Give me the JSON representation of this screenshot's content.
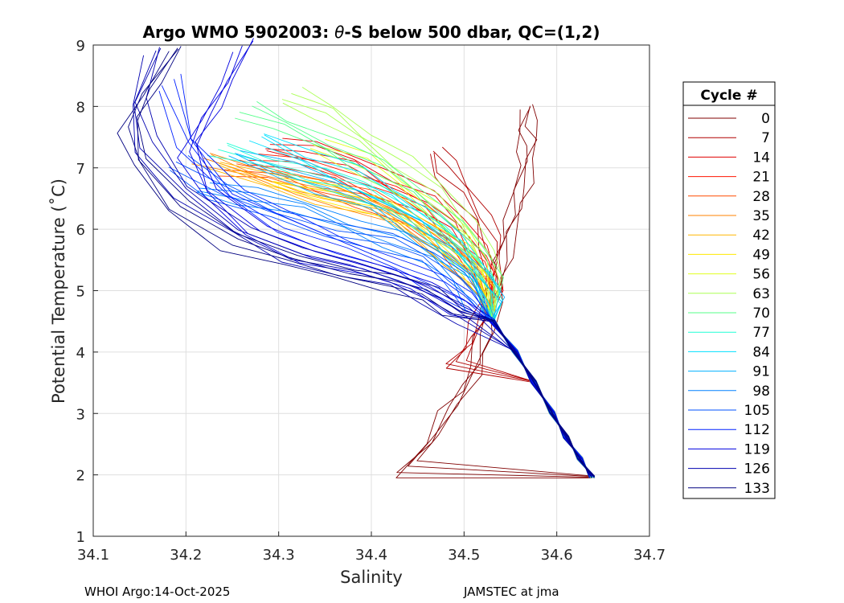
{
  "chart_data": {
    "type": "line",
    "title_prefix": "Argo WMO 5902003: ",
    "title_symbol": "θ",
    "title_suffix": "-S below 500 dbar,  QC=(1,2)",
    "xlabel": "Salinity",
    "ylabel": "Potential Temperature (˚C)",
    "xlim": [
      34.1,
      34.7
    ],
    "ylim": [
      1,
      9
    ],
    "xticks": [
      "34.1",
      "34.2",
      "34.3",
      "34.4",
      "34.5",
      "34.6",
      "34.7"
    ],
    "yticks": [
      "1",
      "2",
      "3",
      "4",
      "5",
      "6",
      "7",
      "8",
      "9"
    ],
    "grid": true,
    "legend": {
      "title": "Cycle #",
      "placement": "right-outside",
      "entries": [
        {
          "label": "0",
          "color": "#800000"
        },
        {
          "label": "7",
          "color": "#b00000"
        },
        {
          "label": "14",
          "color": "#e00000"
        },
        {
          "label": "21",
          "color": "#ff1500"
        },
        {
          "label": "28",
          "color": "#ff4a00"
        },
        {
          "label": "35",
          "color": "#ff8000"
        },
        {
          "label": "42",
          "color": "#ffb500"
        },
        {
          "label": "49",
          "color": "#ffea00"
        },
        {
          "label": "56",
          "color": "#e0ff20"
        },
        {
          "label": "63",
          "color": "#aaff55"
        },
        {
          "label": "70",
          "color": "#55ff8a"
        },
        {
          "label": "77",
          "color": "#20ffd5"
        },
        {
          "label": "84",
          "color": "#00e0ff"
        },
        {
          "label": "91",
          "color": "#00b0ff"
        },
        {
          "label": "98",
          "color": "#0080ff"
        },
        {
          "label": "105",
          "color": "#0050ff"
        },
        {
          "label": "112",
          "color": "#0020ff"
        },
        {
          "label": "119",
          "color": "#0000e0"
        },
        {
          "label": "126",
          "color": "#0000b0"
        },
        {
          "label": "133",
          "color": "#000080"
        }
      ]
    },
    "series": [
      {
        "name": "0",
        "color": "#800000",
        "x": [
          34.574,
          34.57,
          34.575,
          34.572,
          34.566,
          34.56,
          34.552,
          34.545,
          34.54,
          34.534,
          34.527,
          34.52,
          34.51,
          34.49,
          34.47,
          34.44
        ],
        "y": [
          7.9,
          7.6,
          7.3,
          7.0,
          6.6,
          6.2,
          5.8,
          5.4,
          5.0,
          4.6,
          4.2,
          3.8,
          3.4,
          3.0,
          2.5,
          2.0
        ]
      },
      {
        "name": "7",
        "color": "#b00000",
        "x": [
          34.47,
          34.48,
          34.5,
          34.52,
          34.53,
          34.535,
          34.53,
          34.52,
          34.51,
          34.49
        ],
        "y": [
          7.2,
          6.9,
          6.5,
          6.1,
          5.7,
          5.3,
          4.9,
          4.5,
          4.1,
          3.7
        ]
      },
      {
        "name": "14",
        "color": "#e00000",
        "x": [
          34.29,
          34.33,
          34.38,
          34.42,
          34.46,
          34.49,
          34.51,
          34.525,
          34.53
        ],
        "y": [
          7.3,
          7.2,
          7.0,
          6.7,
          6.4,
          6.0,
          5.6,
          5.2,
          4.8
        ]
      },
      {
        "name": "21",
        "color": "#ff1500",
        "x": [
          34.27,
          34.31,
          34.36,
          34.41,
          34.45,
          34.48,
          34.51,
          34.525
        ],
        "y": [
          7.1,
          7.0,
          6.8,
          6.5,
          6.2,
          5.8,
          5.4,
          5.0
        ]
      },
      {
        "name": "28",
        "color": "#ff4a00",
        "x": [
          34.25,
          34.3,
          34.35,
          34.4,
          34.44,
          34.48,
          34.51,
          34.525
        ],
        "y": [
          6.9,
          6.8,
          6.6,
          6.4,
          6.1,
          5.7,
          5.3,
          4.9
        ]
      },
      {
        "name": "35",
        "color": "#ff8000",
        "x": [
          34.22,
          34.27,
          34.33,
          34.38,
          34.43,
          34.47,
          34.5,
          34.52
        ],
        "y": [
          7.05,
          6.85,
          6.6,
          6.35,
          6.05,
          5.7,
          5.3,
          4.9
        ]
      },
      {
        "name": "42",
        "color": "#ffb500",
        "x": [
          34.23,
          34.29,
          34.35,
          34.41,
          34.45,
          34.49,
          34.515
        ],
        "y": [
          6.95,
          6.7,
          6.45,
          6.2,
          5.85,
          5.45,
          5.05
        ]
      },
      {
        "name": "49",
        "color": "#ffea00",
        "x": [
          34.3,
          34.36,
          34.42,
          34.46,
          34.5,
          34.52,
          34.53
        ],
        "y": [
          6.7,
          6.5,
          6.25,
          5.95,
          5.55,
          5.15,
          4.75
        ]
      },
      {
        "name": "56",
        "color": "#e0ff20",
        "x": [
          34.34,
          34.39,
          34.43,
          34.47,
          34.5,
          34.52
        ],
        "y": [
          7.3,
          7.0,
          6.6,
          6.2,
          5.75,
          5.3
        ]
      },
      {
        "name": "63",
        "color": "#aaff55",
        "x": [
          34.31,
          34.35,
          34.39,
          34.43,
          34.47,
          34.5,
          34.52,
          34.535
        ],
        "y": [
          8.1,
          7.8,
          7.4,
          7.0,
          6.5,
          6.0,
          5.5,
          5.0
        ]
      },
      {
        "name": "70",
        "color": "#55ff8a",
        "x": [
          34.26,
          34.3,
          34.35,
          34.4,
          34.44,
          34.48,
          34.51,
          34.53
        ],
        "y": [
          7.85,
          7.6,
          7.3,
          6.9,
          6.5,
          6.0,
          5.5,
          5.0
        ]
      },
      {
        "name": "77",
        "color": "#20ffd5",
        "x": [
          34.24,
          34.29,
          34.34,
          34.39,
          34.43,
          34.47,
          34.5,
          34.52,
          34.535
        ],
        "y": [
          7.2,
          7.0,
          6.8,
          6.55,
          6.25,
          5.9,
          5.5,
          5.1,
          4.7
        ]
      },
      {
        "name": "84",
        "color": "#00e0ff",
        "x": [
          34.28,
          34.33,
          34.38,
          34.42,
          34.46,
          34.49,
          34.51,
          34.525
        ],
        "y": [
          7.4,
          7.1,
          6.8,
          6.45,
          6.1,
          5.7,
          5.3,
          4.9
        ]
      },
      {
        "name": "91",
        "color": "#00b0ff",
        "x": [
          34.25,
          34.3,
          34.35,
          34.4,
          34.44,
          34.48,
          34.51,
          34.53
        ],
        "y": [
          7.15,
          6.9,
          6.6,
          6.3,
          5.95,
          5.55,
          5.15,
          4.75
        ]
      },
      {
        "name": "98",
        "color": "#0080ff",
        "x": [
          34.22,
          34.27,
          34.33,
          34.38,
          34.43,
          34.47,
          34.5,
          34.52
        ],
        "y": [
          6.6,
          6.45,
          6.25,
          6.0,
          5.75,
          5.45,
          5.1,
          4.7
        ]
      },
      {
        "name": "105",
        "color": "#0050ff",
        "x": [
          34.19,
          34.24,
          34.3,
          34.36,
          34.42,
          34.46,
          34.49,
          34.51
        ],
        "y": [
          7.0,
          6.5,
          6.15,
          5.9,
          5.7,
          5.45,
          5.15,
          4.8
        ]
      },
      {
        "name": "112",
        "color": "#0020ff",
        "x": [
          34.18,
          34.2,
          34.25,
          34.31,
          34.37,
          34.43,
          34.47,
          34.5
        ],
        "y": [
          8.3,
          7.3,
          6.5,
          6.0,
          5.6,
          5.3,
          5.05,
          4.75
        ]
      },
      {
        "name": "119",
        "color": "#0000e0",
        "x": [
          34.26,
          34.24,
          34.22,
          34.2,
          34.22,
          34.27,
          34.33,
          34.39,
          34.45,
          34.49
        ],
        "y": [
          8.9,
          8.3,
          7.8,
          7.2,
          6.5,
          5.9,
          5.5,
          5.25,
          5.0,
          4.65
        ]
      },
      {
        "name": "126",
        "color": "#0000b0",
        "x": [
          34.17,
          34.15,
          34.16,
          34.2,
          34.26,
          34.32,
          34.38,
          34.43,
          34.47,
          34.5
        ],
        "y": [
          8.8,
          8.0,
          7.3,
          6.5,
          5.9,
          5.5,
          5.25,
          5.05,
          4.8,
          4.5
        ]
      },
      {
        "name": "133",
        "color": "#000080",
        "x": [
          34.19,
          34.16,
          34.14,
          34.15,
          34.19,
          34.25,
          34.31,
          34.37,
          34.42,
          34.46,
          34.49
        ],
        "y": [
          8.85,
          8.2,
          7.6,
          7.0,
          6.3,
          5.7,
          5.4,
          5.2,
          5.05,
          4.85,
          4.55
        ]
      }
    ],
    "deep_tail": {
      "comment": "shared convergence of all profiles below ~4.5 C",
      "x": [
        34.53,
        34.555,
        34.575,
        34.595,
        34.61,
        34.625,
        34.638
      ],
      "y": [
        4.5,
        4.0,
        3.5,
        3.0,
        2.6,
        2.25,
        1.95
      ]
    }
  },
  "footer": {
    "left": "WHOI Argo:14-Oct-2025",
    "right": "JAMSTEC at jma"
  }
}
